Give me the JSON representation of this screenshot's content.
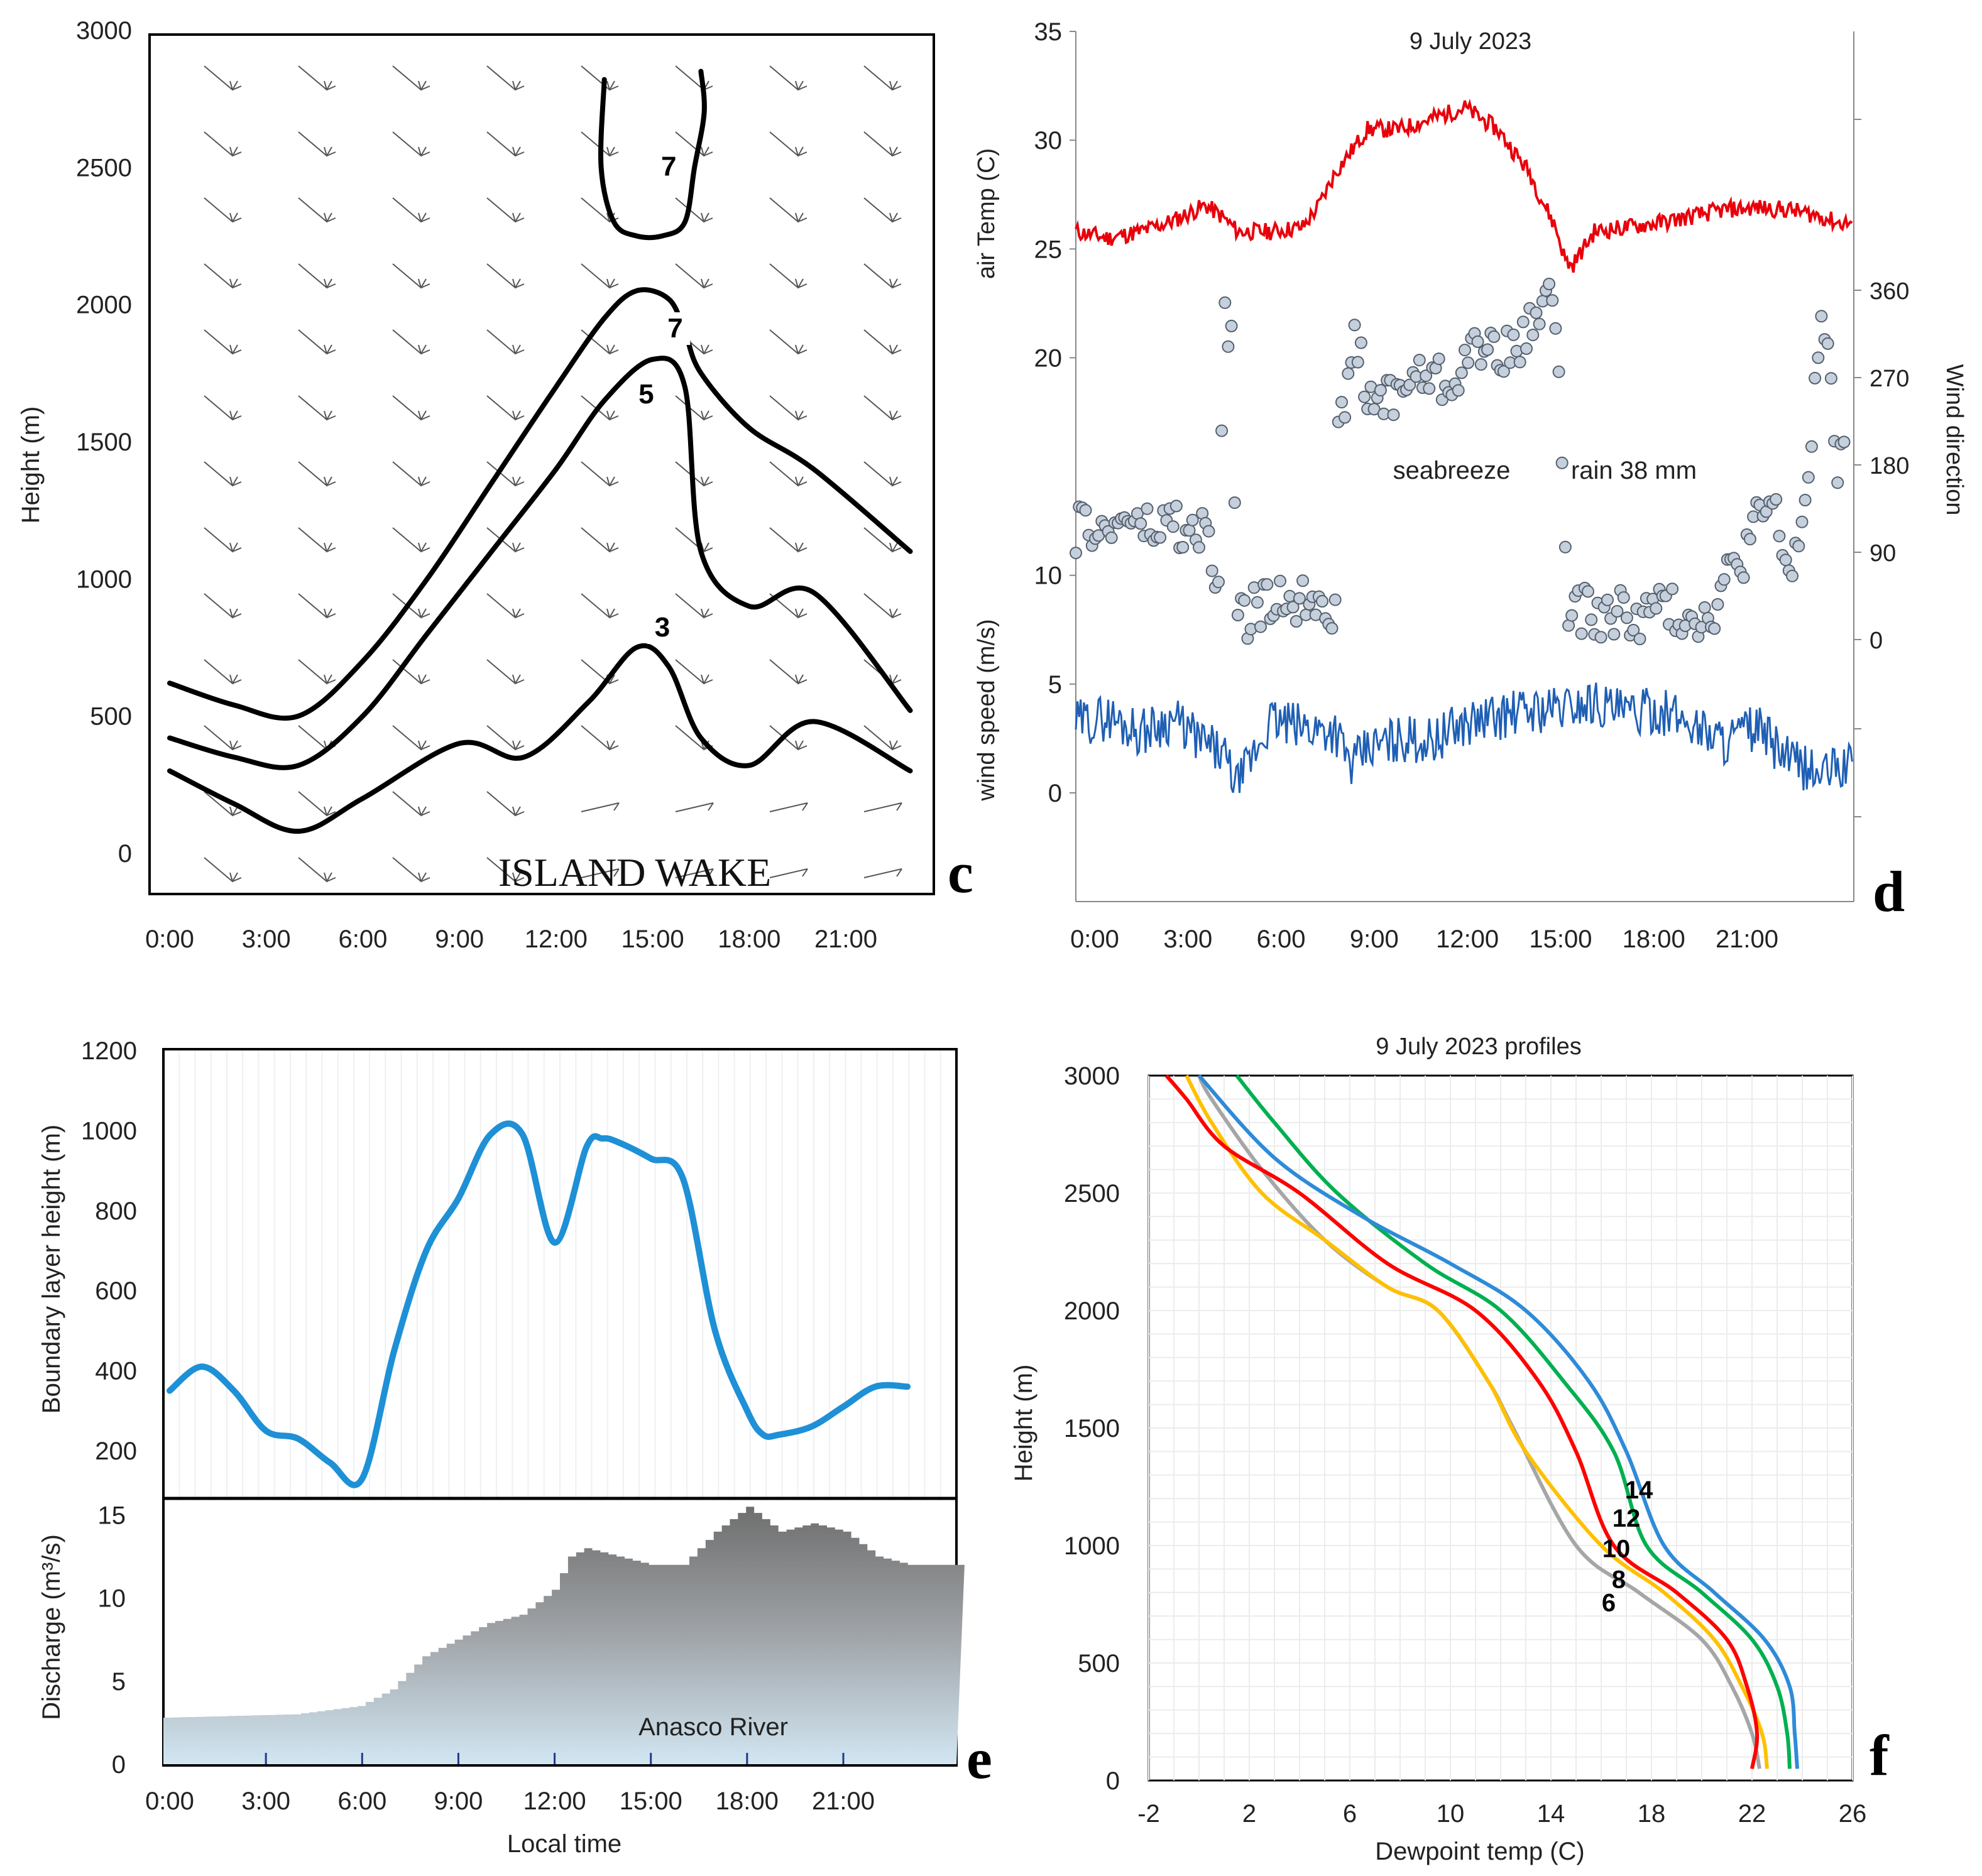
{
  "chart_data": [
    {
      "id": "c",
      "type": "line",
      "panel_letter": "c",
      "ylabel": "Height (m)",
      "ylim": [
        0,
        3000
      ],
      "yticks": [
        "3000",
        "2500",
        "2000",
        "1500",
        "1000",
        "500",
        "0"
      ],
      "xticks": [
        "0:00",
        "3:00",
        "6:00",
        "9:00",
        "12:00",
        "15:00",
        "18:00",
        "21:00"
      ],
      "annotation": "ISLAND WAKE",
      "contours": [
        {
          "label": "3",
          "x": [
            0,
            2,
            4,
            6,
            9,
            11,
            13,
            14.5,
            15.5,
            16.5,
            18,
            20,
            23
          ],
          "y": [
            300,
            180,
            80,
            200,
            400,
            350,
            550,
            750,
            680,
            420,
            320,
            480,
            300
          ]
        },
        {
          "label": "5",
          "x": [
            0,
            2,
            4,
            6,
            8,
            10,
            12,
            13.5,
            15,
            16,
            16.5,
            18,
            20,
            23
          ],
          "y": [
            420,
            350,
            320,
            500,
            800,
            1100,
            1400,
            1650,
            1800,
            1700,
            1100,
            900,
            950,
            520
          ]
        },
        {
          "label": "7",
          "x": [
            0,
            2,
            4,
            6,
            8,
            10,
            12,
            13.5,
            14.5,
            15.5,
            16,
            16.5,
            18,
            20,
            23
          ],
          "y": [
            620,
            540,
            500,
            700,
            1000,
            1350,
            1700,
            1950,
            2050,
            2020,
            1900,
            1750,
            1550,
            1400,
            1100
          ]
        },
        {
          "label": "7",
          "x": [
            13.5,
            13.4,
            13.8,
            14.5,
            15.3,
            16.0,
            16.3,
            16.6,
            16.5
          ],
          "y": [
            2820,
            2500,
            2300,
            2250,
            2250,
            2300,
            2500,
            2700,
            2850
          ]
        }
      ]
    },
    {
      "id": "d",
      "type": "line",
      "panel_letter": "d",
      "title": "9 July 2023",
      "ylabel_temp": "air Temp (C)",
      "ylabel_speed": "wind speed (m/s)",
      "ylabel_right": "Wind direction",
      "yticks_left": [
        "35",
        "30",
        "25",
        "20",
        "10",
        "5",
        "0"
      ],
      "yticks_right": [
        "360",
        "270",
        "180",
        "90",
        "0"
      ],
      "xticks": [
        "0:00",
        "3:00",
        "6:00",
        "9:00",
        "12:00",
        "15:00",
        "18:00",
        "21:00"
      ],
      "annotations": [
        "seabreeze",
        "rain 38 mm"
      ],
      "air_temp": {
        "x": [
          0,
          1,
          2,
          3,
          4,
          4.5,
          5,
          6,
          7,
          7.5,
          8,
          9,
          10,
          11,
          12,
          13,
          13.5,
          14,
          14.3,
          14.8,
          15.1,
          15.3,
          16,
          17,
          18,
          19,
          20,
          21,
          22,
          23,
          23.5
        ],
        "y": [
          25.8,
          25.5,
          25.8,
          26.3,
          27,
          26.5,
          25.8,
          25.8,
          26,
          27,
          28.5,
          30.5,
          30.5,
          31,
          31.5,
          30.5,
          29.5,
          28.5,
          27.5,
          26,
          24.5,
          24.2,
          25.8,
          26,
          26.2,
          26.5,
          26.8,
          26.9,
          26.8,
          26.5,
          26.2
        ]
      },
      "wind_speed": {
        "x": [
          0,
          1,
          2,
          3,
          4,
          4.5,
          5,
          6,
          7,
          8,
          8.5,
          9,
          10,
          11,
          12,
          13,
          14,
          15,
          16,
          17,
          18,
          19,
          20,
          21,
          22,
          23,
          23.5
        ],
        "y": [
          3.2,
          3.5,
          2.8,
          3.4,
          2.2,
          1.8,
          0.3,
          3.3,
          3.0,
          2.9,
          1.2,
          2.0,
          2.5,
          2.4,
          3.2,
          3.5,
          3.8,
          3.9,
          4.2,
          3.6,
          3.8,
          3.2,
          2.4,
          3.0,
          1.5,
          0.8,
          1.2
        ]
      },
      "wind_direction": {
        "x": [
          0,
          0.5,
          1,
          1.5,
          2,
          2.5,
          3,
          3.5,
          4,
          4.4,
          4.6,
          4.8,
          5.0,
          5.5,
          6,
          6.5,
          7,
          7.5,
          8,
          8.1,
          8.4,
          8.6,
          9,
          9.5,
          10,
          10.5,
          11,
          11.5,
          12,
          12.5,
          13,
          13.5,
          14,
          14.4,
          14.8,
          15.2,
          15.6,
          16,
          16.5,
          17,
          17.5,
          18,
          18.5,
          19,
          19.5,
          20,
          20.5,
          21,
          21.5,
          22,
          22.5,
          23,
          23.5
        ],
        "y": [
          110,
          120,
          105,
          130,
          115,
          110,
          125,
          100,
          120,
          40,
          350,
          300,
          20,
          30,
          35,
          45,
          40,
          50,
          30,
          210,
          250,
          330,
          240,
          250,
          260,
          270,
          275,
          260,
          290,
          300,
          305,
          290,
          320,
          360,
          340,
          20,
          30,
          25,
          25,
          30,
          20,
          40,
          25,
          30,
          20,
          60,
          80,
          120,
          140,
          70,
          120,
          350,
          180
        ]
      },
      "speed_ylim": [
        0,
        5
      ],
      "temp_ylim": [
        25,
        35
      ],
      "dir_ylim": [
        0,
        360
      ]
    },
    {
      "id": "e",
      "type": "area",
      "panel_letter": "e",
      "ylabel_top": "Boundary layer height (m)",
      "ylabel_bottom": "Discharge (m³/s)",
      "yticks_top": [
        "1200",
        "1000",
        "800",
        "600",
        "400",
        "200"
      ],
      "yticks_bottom": [
        "15",
        "10",
        "5",
        "0"
      ],
      "xticks": [
        "0:00",
        "3:00",
        "6:00",
        "9:00",
        "12:00",
        "15:00",
        "18:00",
        "21:00"
      ],
      "xlabel": "Local time",
      "annotation": "Anasco River",
      "blh": {
        "x": [
          0,
          1,
          2,
          3,
          4,
          5,
          6,
          7,
          8,
          9,
          10,
          11,
          12,
          13,
          13.5,
          14,
          15,
          16,
          17,
          18,
          18.5,
          19,
          20,
          21,
          22,
          23
        ],
        "y": [
          350,
          410,
          350,
          250,
          230,
          170,
          130,
          450,
          700,
          830,
          990,
          990,
          720,
          960,
          980,
          970,
          930,
          880,
          500,
          300,
          240,
          240,
          260,
          310,
          360,
          360
        ]
      },
      "blh_ylim": [
        120,
        1200
      ],
      "discharge": {
        "x": [
          0,
          2,
          4,
          6,
          7,
          8,
          9,
          10,
          11,
          12,
          12.5,
          13,
          14,
          15,
          16,
          17,
          18,
          19,
          20,
          21,
          22,
          23
        ],
        "y": [
          2.8,
          2.9,
          3.0,
          3.5,
          4.5,
          6.5,
          7.5,
          8.5,
          9.0,
          10.5,
          12.5,
          13.0,
          12.5,
          12.0,
          12.0,
          14.0,
          15.5,
          14.0,
          14.5,
          14.0,
          12.5,
          12.0
        ]
      },
      "discharge_ylim": [
        0,
        16
      ]
    },
    {
      "id": "f",
      "type": "line",
      "panel_letter": "f",
      "title": "9 July 2023 profiles",
      "ylabel": "Height (m)",
      "xlabel": "Dewpoint temp (C)",
      "xticks": [
        "-2",
        "2",
        "6",
        "10",
        "14",
        "18",
        "22",
        "26"
      ],
      "yticks": [
        "3000",
        "2500",
        "2000",
        "1500",
        "1000",
        "500",
        "0"
      ],
      "xlim": [
        -2,
        26
      ],
      "ylim": [
        0,
        3000
      ],
      "series": [
        {
          "name": "6",
          "color": "#a6a6a6",
          "x": [
            22.3,
            22.0,
            21.2,
            20.0,
            17.5,
            15.0,
            12.5,
            11.5,
            9.5,
            7.5,
            5.0,
            2.5,
            0.5,
            0.0
          ],
          "y": [
            50,
            200,
            400,
            600,
            800,
            1000,
            1500,
            1700,
            2000,
            2100,
            2300,
            2600,
            2900,
            3000
          ]
        },
        {
          "name": "8",
          "color": "#ffc000",
          "x": [
            22.6,
            22.4,
            21.6,
            20.5,
            18.5,
            16.0,
            13.0,
            11.5,
            9.5,
            7.5,
            5.0,
            2.5,
            0.5,
            -0.5
          ],
          "y": [
            50,
            200,
            400,
            600,
            800,
            1000,
            1400,
            1700,
            2000,
            2100,
            2300,
            2500,
            2800,
            3000
          ]
        },
        {
          "name": "10",
          "color": "#ff0000",
          "x": [
            22.0,
            22.2,
            21.8,
            21.0,
            19.0,
            16.5,
            15.0,
            13.5,
            11.0,
            7.5,
            4.0,
            1.0,
            -0.5,
            -1.3
          ],
          "y": [
            50,
            200,
            400,
            600,
            800,
            1000,
            1400,
            1700,
            2000,
            2200,
            2500,
            2700,
            2900,
            3000
          ]
        },
        {
          "name": "12",
          "color": "#00b050",
          "x": [
            23.5,
            23.4,
            23.0,
            22.0,
            20.0,
            17.8,
            16.5,
            14.5,
            12.0,
            9.0,
            5.5,
            3.0,
            1.5
          ],
          "y": [
            50,
            200,
            400,
            600,
            800,
            1000,
            1400,
            1700,
            2000,
            2200,
            2500,
            2800,
            3000
          ]
        },
        {
          "name": "14",
          "color": "#2e8bd8",
          "x": [
            23.8,
            23.7,
            23.5,
            22.5,
            20.5,
            18.5,
            17.0,
            15.5,
            13.0,
            10.0,
            6.5,
            3.0,
            0.0
          ],
          "y": [
            50,
            200,
            400,
            600,
            800,
            1000,
            1400,
            1700,
            2000,
            2200,
            2400,
            2650,
            3000
          ]
        }
      ]
    }
  ]
}
